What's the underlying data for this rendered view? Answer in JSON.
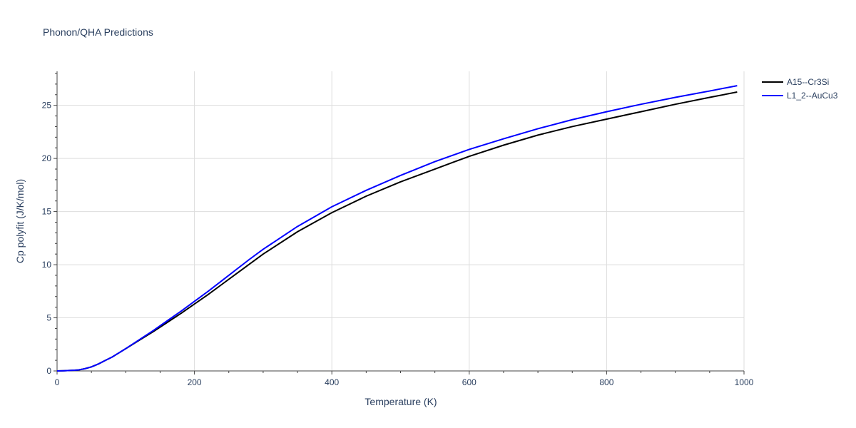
{
  "chart_data": {
    "type": "line",
    "title": "Phonon/QHA Predictions",
    "xlabel": "Temperature (K)",
    "ylabel": "Cp polyfit (J/K/mol)",
    "xlim": [
      0,
      1000
    ],
    "ylim": [
      0,
      28.2
    ],
    "xticks": [
      0,
      200,
      400,
      600,
      800,
      1000
    ],
    "xtick_labels": [
      "0",
      "200",
      "400",
      "600",
      "800",
      "1000"
    ],
    "yticks": [
      0,
      5,
      10,
      15,
      20,
      25
    ],
    "ytick_labels": [
      "0",
      "5",
      "10",
      "15",
      "20",
      "25"
    ],
    "grid": true,
    "legend_position": "top-right outside",
    "series": [
      {
        "name": "A15--Cr3Si",
        "color": "#000000",
        "x": [
          0,
          10,
          20,
          30,
          40,
          50,
          60,
          70,
          80,
          90,
          100,
          120,
          140,
          160,
          180,
          200,
          220,
          240,
          260,
          280,
          300,
          350,
          400,
          450,
          500,
          550,
          600,
          650,
          700,
          750,
          800,
          850,
          900,
          950,
          990
        ],
        "y": [
          0,
          0.02,
          0.05,
          0.08,
          0.2,
          0.38,
          0.65,
          0.98,
          1.3,
          1.7,
          2.1,
          2.9,
          3.7,
          4.55,
          5.4,
          6.3,
          7.2,
          8.15,
          9.1,
          10.05,
          11.0,
          13.1,
          14.9,
          16.45,
          17.8,
          19.0,
          20.2,
          21.25,
          22.2,
          23.0,
          23.7,
          24.4,
          25.1,
          25.75,
          26.25
        ]
      },
      {
        "name": "L1_2--AuCu3",
        "color": "#0000ff",
        "x": [
          0,
          10,
          20,
          30,
          40,
          50,
          60,
          70,
          80,
          90,
          100,
          120,
          140,
          160,
          180,
          200,
          220,
          240,
          260,
          280,
          300,
          350,
          400,
          450,
          500,
          550,
          600,
          650,
          700,
          750,
          800,
          850,
          900,
          950,
          990
        ],
        "y": [
          0,
          0.02,
          0.05,
          0.08,
          0.2,
          0.38,
          0.65,
          0.98,
          1.3,
          1.7,
          2.1,
          2.95,
          3.8,
          4.7,
          5.6,
          6.55,
          7.5,
          8.5,
          9.5,
          10.5,
          11.45,
          13.6,
          15.45,
          17.0,
          18.4,
          19.7,
          20.85,
          21.85,
          22.8,
          23.65,
          24.4,
          25.1,
          25.75,
          26.35,
          26.85
        ]
      }
    ]
  }
}
